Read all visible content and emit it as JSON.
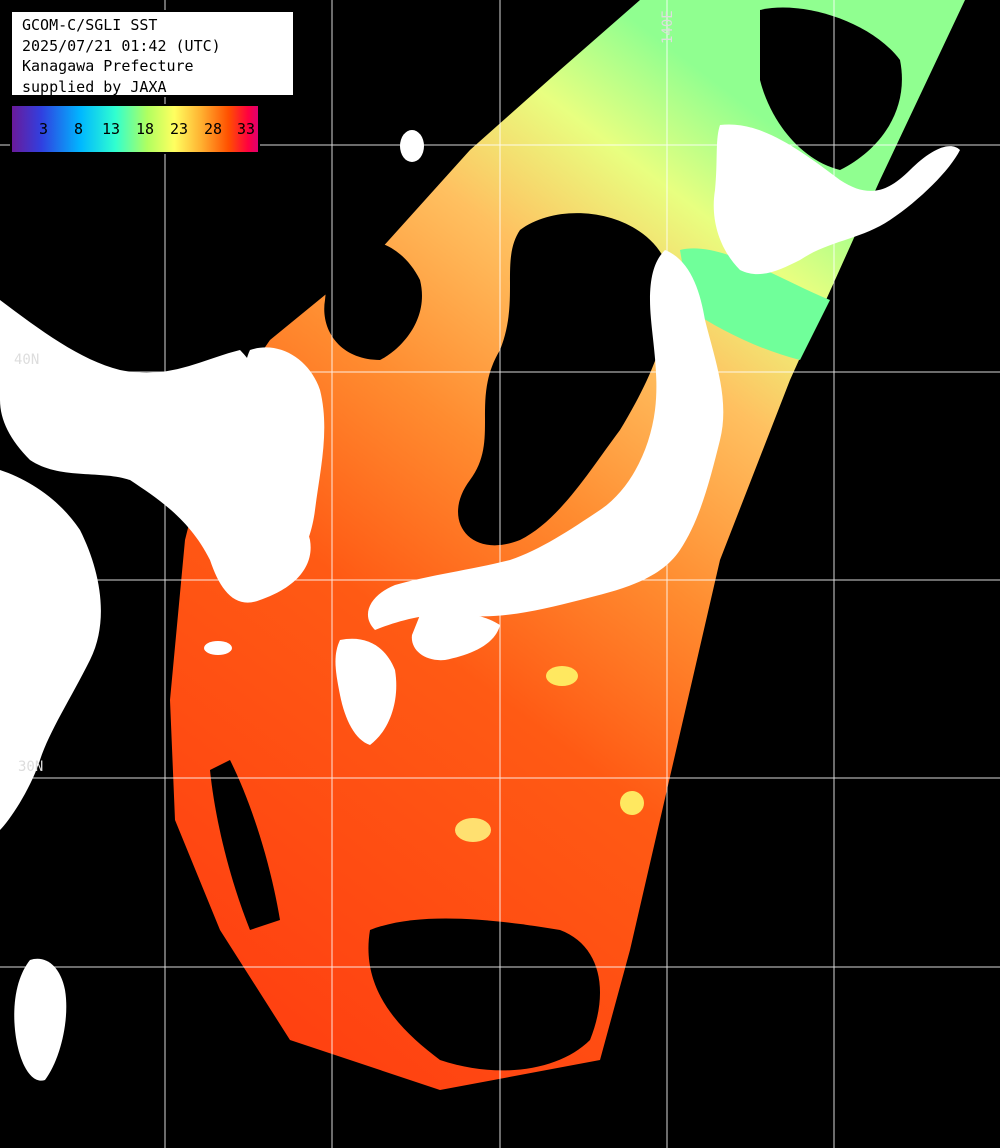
{
  "info": {
    "line1": "GCOM-C/SGLI SST",
    "line2": "2025/07/21 01:42 (UTC)",
    "line3": "Kanagawa Prefecture",
    "line4": "supplied by JAXA"
  },
  "legend": {
    "ticks": [
      "3",
      "8",
      "13",
      "18",
      "23",
      "28",
      "33"
    ],
    "colors": [
      "#6a1a9a",
      "#3040e0",
      "#00b8ff",
      "#30ffd0",
      "#b0ff60",
      "#ffff60",
      "#ffb030",
      "#ff5000",
      "#ff0040",
      "#e00070"
    ]
  },
  "grid": {
    "lat_label_40": "40N",
    "lat_label_30": "30N",
    "lon_label_140": "140E"
  },
  "colors": {
    "land": "#ffffff",
    "cloud": "#000000",
    "warm_sea": "#ff5a10",
    "cool_sea": "#a8ff70",
    "grid": "#ffffff"
  }
}
